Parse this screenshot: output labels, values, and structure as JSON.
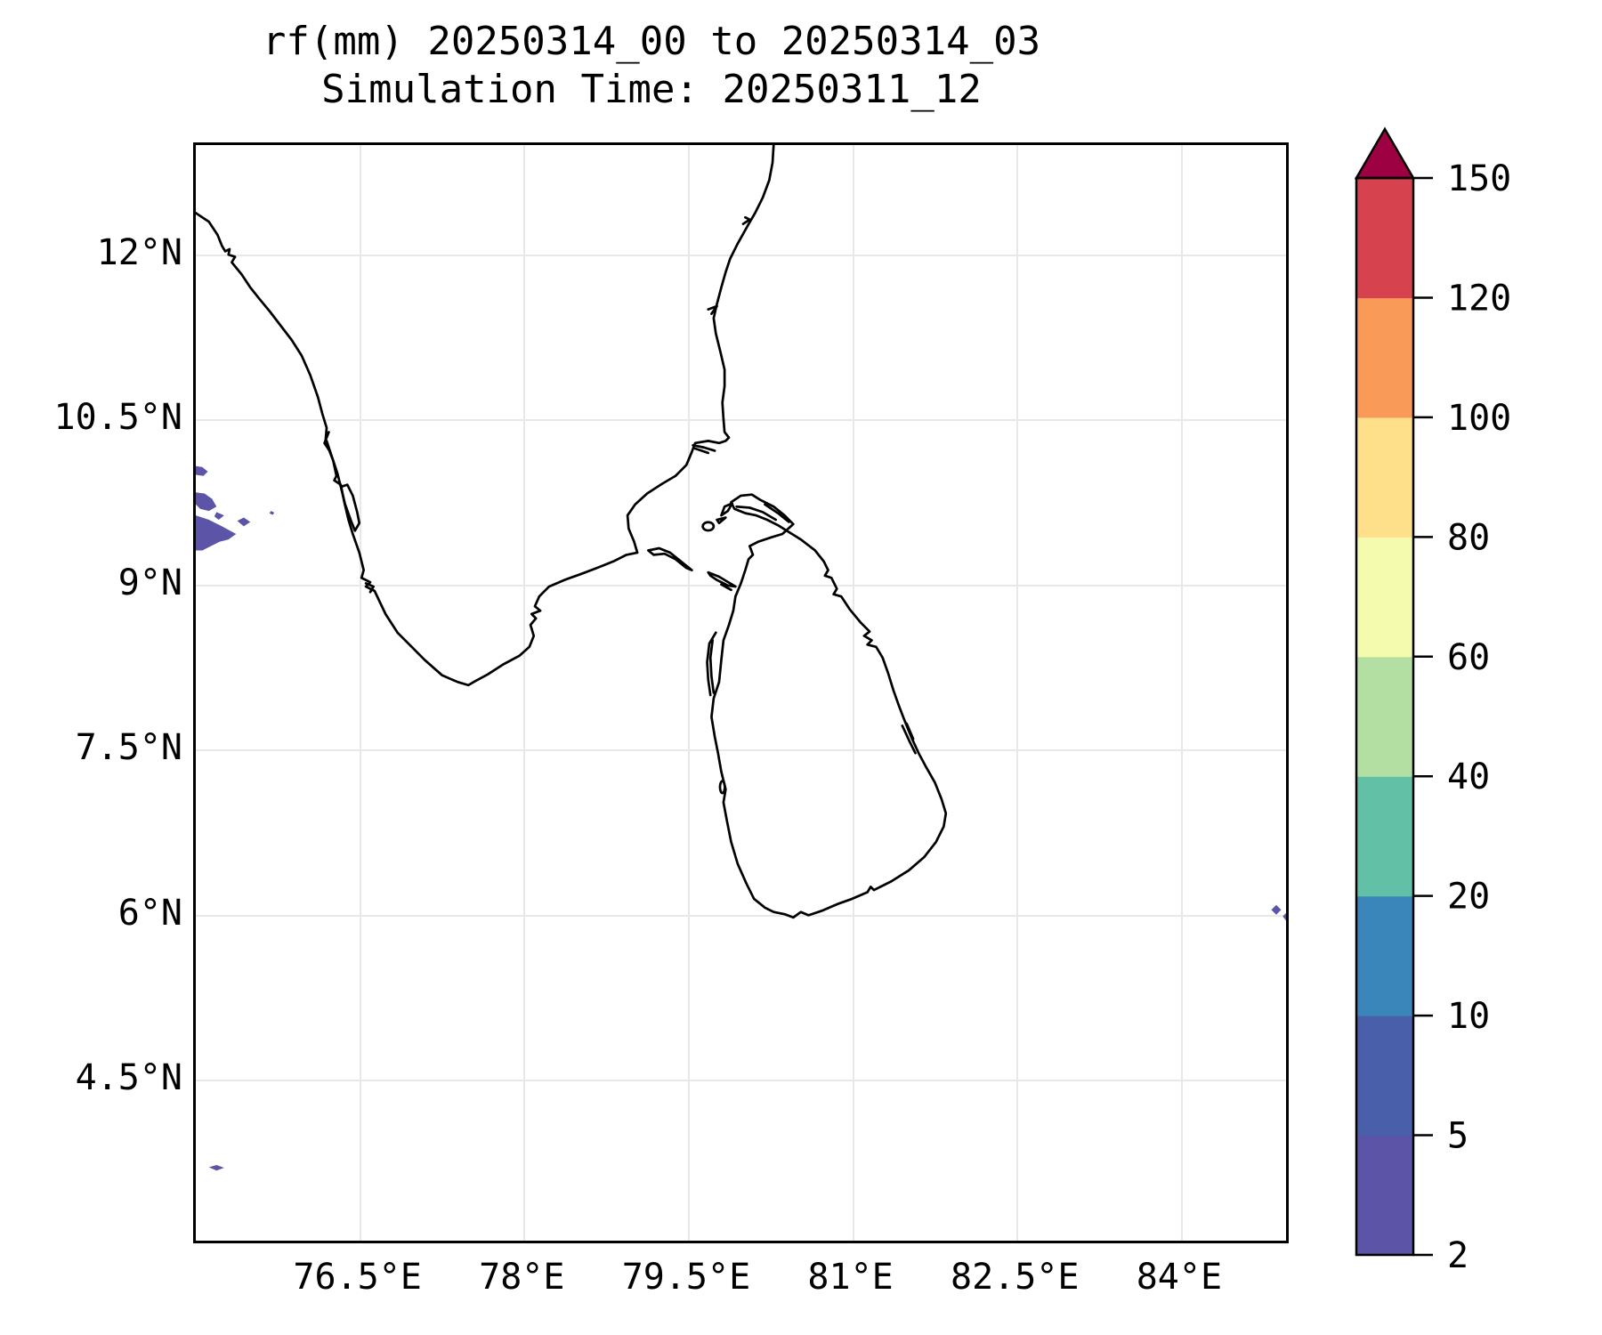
{
  "figure": {
    "title_line1": "rf(mm) 20250314_00 to 20250314_03",
    "title_line2": "Simulation Time: 20250311_12"
  },
  "map": {
    "extent": {
      "lon_min": 75,
      "lon_max": 85,
      "lat_min": 3,
      "lat_max": 13
    },
    "x_ticks": [
      {
        "label": "76.5°E",
        "lon": 76.5
      },
      {
        "label": "78°E",
        "lon": 78
      },
      {
        "label": "79.5°E",
        "lon": 79.5
      },
      {
        "label": "81°E",
        "lon": 81
      },
      {
        "label": "82.5°E",
        "lon": 82.5
      },
      {
        "label": "84°E",
        "lon": 84
      }
    ],
    "y_ticks": [
      {
        "label": "12°N",
        "lat": 12
      },
      {
        "label": "10.5°N",
        "lat": 10.5
      },
      {
        "label": "9°N",
        "lat": 9
      },
      {
        "label": "7.5°N",
        "lat": 7.5
      },
      {
        "label": "6°N",
        "lat": 6
      },
      {
        "label": "4.5°N",
        "lat": 4.5
      }
    ],
    "coastline_color": "#000000",
    "gridline_color": "#e8e8e8"
  },
  "colorbar": {
    "levels": [
      2,
      5,
      10,
      20,
      40,
      60,
      80,
      100,
      120,
      150
    ],
    "tick_labels_top_to_bottom": [
      "150",
      "120",
      "100",
      "80",
      "60",
      "40",
      "20",
      "10",
      "5",
      "2"
    ],
    "colors_bottom_to_top": [
      "#5c54a6",
      "#4a5fa9",
      "#3a86bb",
      "#62c0a6",
      "#b3e0a2",
      "#f4fbaf",
      "#fee08b",
      "#f99a58",
      "#d6424e"
    ],
    "over_color": "#9e0142",
    "extend": "max"
  },
  "chart_data": {
    "type": "heatmap",
    "title": "rf(mm) 20250314_00 to 20250314_03",
    "subtitle": "Simulation Time: 20250311_12",
    "variable": "rainfall (mm)",
    "x_tick_labels": [
      "76.5°E",
      "78°E",
      "79.5°E",
      "81°E",
      "82.5°E",
      "84°E"
    ],
    "y_tick_labels": [
      "12°N",
      "10.5°N",
      "9°N",
      "7.5°N",
      "6°N",
      "4.5°N"
    ],
    "lon_range": [
      75,
      85
    ],
    "lat_range": [
      3,
      13
    ],
    "grid": true,
    "legend_position": "right-colorbar",
    "color_levels_mm": [
      2,
      5,
      10,
      20,
      40,
      60,
      80,
      100,
      120,
      150
    ],
    "regions_with_rainfall": [
      {
        "lon": [
          75.0,
          75.11
        ],
        "lat": [
          9.98,
          10.07
        ],
        "value_mm": "2-5"
      },
      {
        "lon": [
          75.0,
          75.19
        ],
        "lat": [
          9.66,
          9.83
        ],
        "value_mm": "2-5"
      },
      {
        "lon": [
          75.17,
          75.26
        ],
        "lat": [
          9.58,
          9.65
        ],
        "value_mm": "2-5"
      },
      {
        "lon": [
          75.38,
          75.5
        ],
        "lat": [
          9.52,
          9.6
        ],
        "value_mm": "2-5"
      },
      {
        "lon": [
          75.0,
          75.37
        ],
        "lat": [
          9.3,
          9.62
        ],
        "value_mm": "2-5"
      },
      {
        "lon": [
          75.68,
          75.72
        ],
        "lat": [
          9.63,
          9.66
        ],
        "value_mm": "2-5"
      },
      {
        "lon": [
          75.12,
          75.26
        ],
        "lat": [
          3.64,
          3.69
        ],
        "value_mm": "2-5"
      },
      {
        "lon": [
          84.87,
          84.96
        ],
        "lat": [
          5.97,
          6.07
        ],
        "value_mm": "2-5"
      },
      {
        "lon": [
          84.97,
          85.0
        ],
        "lat": [
          5.91,
          5.99
        ],
        "value_mm": "2-5"
      }
    ],
    "map_features": [
      "south-india-coastline",
      "sri-lanka-coastline"
    ]
  }
}
